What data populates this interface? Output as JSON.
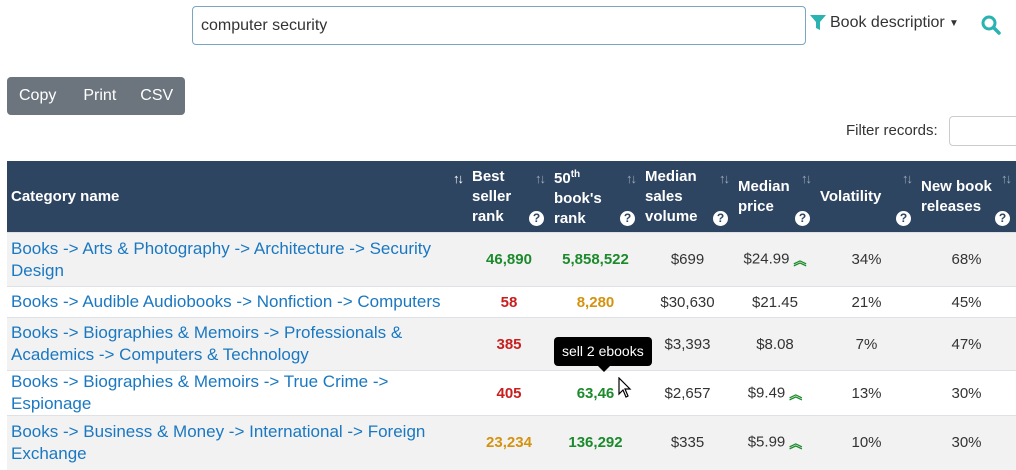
{
  "search": {
    "value": "computer security",
    "filter_label": "Book descriptior"
  },
  "buttons": {
    "copy": "Copy",
    "print": "Print",
    "csv": "CSV"
  },
  "filter": {
    "label": "Filter records:"
  },
  "columns": {
    "category": "Category name",
    "best_seller": "Best seller rank",
    "fiftieth_num": "50",
    "fiftieth_sup": "th",
    "fiftieth_rest": "book's rank",
    "median_sales": "Median sales volume",
    "median_price": "Median price",
    "volatility": "Volatility",
    "new_releases": "New book releases"
  },
  "rows": [
    {
      "category": "Books -> Arts & Photography -> Architecture -> Security Design",
      "best_seller": "46,890",
      "best_seller_color": "green",
      "rank50": "5,858,522",
      "rank50_color": "green",
      "sales": "$699",
      "price": "$24.99",
      "price_trend": "up",
      "volatility": "34%",
      "new": "68%"
    },
    {
      "category": "Books -> Audible Audiobooks -> Nonfiction -> Computers",
      "best_seller": "58",
      "best_seller_color": "red",
      "rank50": "8,280",
      "rank50_color": "orange",
      "sales": "$30,630",
      "price": "$21.45",
      "price_trend": "",
      "volatility": "21%",
      "new": "45%"
    },
    {
      "category": "Books -> Biographies & Memoirs -> Professionals & Academics -> Computers & Technology",
      "best_seller": "385",
      "best_seller_color": "red",
      "rank50": "",
      "rank50_color": "green",
      "sales": "$3,393",
      "price": "$8.08",
      "price_trend": "",
      "volatility": "7%",
      "new": "47%"
    },
    {
      "category": "Books -> Biographies & Memoirs -> True Crime -> Espionage",
      "best_seller": "405",
      "best_seller_color": "red",
      "rank50": "63,46",
      "rank50_color": "green",
      "sales": "$2,657",
      "price": "$9.49",
      "price_trend": "up",
      "volatility": "13%",
      "new": "30%"
    },
    {
      "category": "Books -> Business & Money -> International -> Foreign Exchange",
      "best_seller": "23,234",
      "best_seller_color": "orange",
      "rank50": "136,292",
      "rank50_color": "green",
      "sales": "$335",
      "price": "$5.99",
      "price_trend": "up",
      "volatility": "10%",
      "new": "30%"
    }
  ],
  "tooltip": "sell 2 ebooks",
  "colors": {
    "header_bg": "#2e4562",
    "link": "#1a78c2",
    "green": "#1c8a2c",
    "red": "#c81e1e",
    "orange": "#d4920e",
    "accent_teal": "#2ab3b0"
  }
}
